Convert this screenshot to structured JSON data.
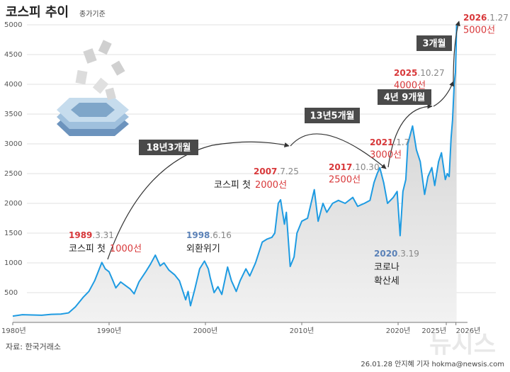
{
  "chart_data": {
    "type": "line",
    "title": "코스피 추이",
    "subtitle": "종가기준",
    "source": "자료: 한국거래소",
    "credit": "26.01.28 안지혜 기자 hokma@newsis.com",
    "watermark": "뉴시스",
    "xlim": [
      1980,
      2026.1
    ],
    "xticks": [
      {
        "value": 1980,
        "label": "1980년"
      },
      {
        "value": 1990,
        "label": "1990년"
      },
      {
        "value": 2000,
        "label": "2000년"
      },
      {
        "value": 2010,
        "label": "2010년"
      },
      {
        "value": 2020,
        "label": "2020년"
      },
      {
        "value": 2025,
        "label": "2025년"
      },
      {
        "value": 2026,
        "label": "2026년"
      }
    ],
    "ylim": [
      0,
      5000
    ],
    "yticks": [
      500,
      1000,
      1500,
      2000,
      2500,
      3000,
      3500,
      4000,
      4500,
      5000
    ],
    "grid": true,
    "series": [
      {
        "name": "코스피",
        "color": "#1e9be2",
        "x": [
          1980,
          1981,
          1982,
          1983,
          1984,
          1985,
          1985.8,
          1986.5,
          1987.3,
          1987.9,
          1988.5,
          1989.25,
          1989.6,
          1990,
          1990.4,
          1990.7,
          1991.2,
          1991.7,
          1992.2,
          1992.6,
          1993.1,
          1993.8,
          1994.3,
          1994.8,
          1995.3,
          1995.7,
          1996.2,
          1996.8,
          1997.3,
          1997.95,
          1998.2,
          1998.45,
          1998.9,
          1999.4,
          1999.9,
          2000.3,
          2000.5,
          2000.9,
          2001.3,
          2001.7,
          2002.3,
          2002.7,
          2003.2,
          2003.6,
          2004.2,
          2004.6,
          2005.2,
          2005.9,
          2006.4,
          2006.9,
          2007.2,
          2007.56,
          2007.8,
          2008.2,
          2008.4,
          2008.8,
          2009.2,
          2009.5,
          2010,
          2010.6,
          2011.3,
          2011.7,
          2012.2,
          2012.6,
          2013.2,
          2013.8,
          2014.5,
          2015.3,
          2015.8,
          2016.5,
          2017.08,
          2017.5,
          2017.83,
          2018.1,
          2018.5,
          2018.9,
          2019.5,
          2019.9,
          2020.21,
          2020.5,
          2020.8,
          2021.01,
          2021.5,
          2021.9,
          2022.3,
          2022.75,
          2023.1,
          2023.5,
          2023.8,
          2024.2,
          2024.5,
          2024.9,
          2025.1,
          2025.3,
          2025.5,
          2025.65,
          2025.82,
          2025.95,
          2026.02,
          2026.07
        ],
        "values": [
          106,
          130,
          125,
          120,
          135,
          140,
          160,
          260,
          420,
          520,
          700,
          1007,
          900,
          850,
          700,
          580,
          680,
          620,
          560,
          480,
          680,
          850,
          980,
          1130,
          950,
          1000,
          880,
          800,
          700,
          380,
          520,
          280,
          560,
          900,
          1030,
          900,
          750,
          500,
          600,
          470,
          930,
          700,
          520,
          700,
          900,
          780,
          1000,
          1350,
          1400,
          1430,
          1500,
          2000,
          2060,
          1650,
          1850,
          940,
          1100,
          1500,
          1700,
          1750,
          2230,
          1700,
          2000,
          1850,
          2000,
          2050,
          2000,
          2100,
          1950,
          2000,
          2050,
          2350,
          2500,
          2600,
          2350,
          2000,
          2100,
          2200,
          1457,
          2200,
          2400,
          3000,
          3300,
          2900,
          2700,
          2150,
          2450,
          2600,
          2300,
          2700,
          2850,
          2400,
          2500,
          2450,
          3100,
          3400,
          4000,
          4200,
          4600,
          5000
        ]
      }
    ],
    "annotations": [
      {
        "date": "1989",
        "date_rest": ".3.31",
        "label": "코스피 첫",
        "level": "1000선"
      },
      {
        "date": "1998",
        "date_rest": ".6.16",
        "label": "외환위기"
      },
      {
        "date": "2007",
        "date_rest": ".7.25",
        "label": "코스피 첫",
        "level": "2000선"
      },
      {
        "date": "2017",
        "date_rest": ".10.30",
        "level": "2500선"
      },
      {
        "date": "2021",
        "date_rest": ".1.7",
        "level": "3000선"
      },
      {
        "date": "2025",
        "date_rest": ".10.27",
        "level": "4000선"
      },
      {
        "date": "2026",
        "date_rest": ".1.27",
        "level": "5000선"
      },
      {
        "date": "2020",
        "date_rest": ".3.19",
        "label": "코로나",
        "label2": "확산세"
      }
    ],
    "periods": [
      "18년3개월",
      "13년5개월",
      "4년 9개월",
      "3개월"
    ]
  }
}
